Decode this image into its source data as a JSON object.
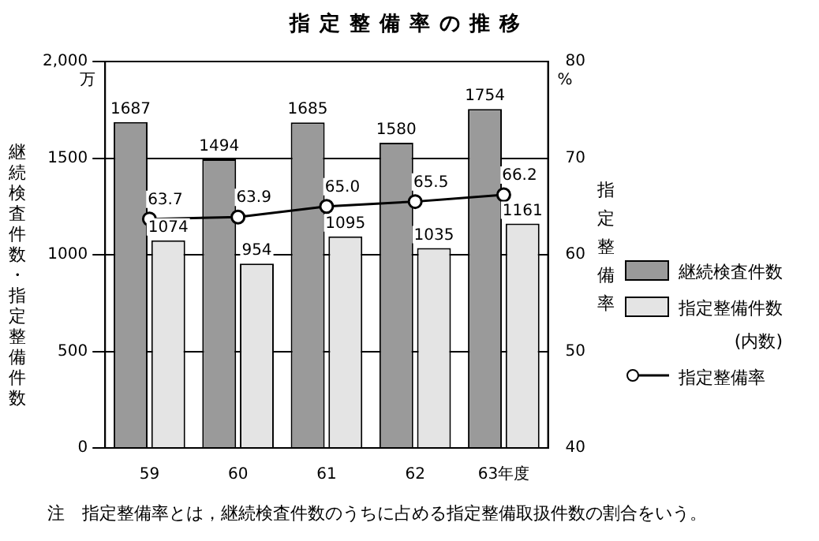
{
  "chart_data": {
    "type": "bar",
    "title": "指定整備率の推移",
    "ylabel": "継続検査件数・指定整備件数",
    "y2label": "指定整備率",
    "annotations": [
      "万",
      "%",
      "注　指定整備率とは，継続検査件数のうちに占める指定整備取扱件数の割合をいう。"
    ],
    "categories": [
      "59",
      "60",
      "61",
      "62",
      "63年度"
    ],
    "series": [
      {
        "name": "継続検査件数",
        "color": "#9a9a9a",
        "values": [
          1687,
          1494,
          1685,
          1580,
          1754
        ],
        "value_labels": [
          "1687",
          "1494",
          "1685",
          "1580",
          "1754"
        ]
      },
      {
        "name": "指定整備件数\n(内数)",
        "color": "#e4e4e4",
        "values": [
          1074,
          954,
          1095,
          1035,
          1161
        ],
        "value_labels": [
          "1074",
          "954",
          "1095",
          "1035",
          "1161"
        ]
      },
      {
        "name": "指定整備率",
        "type": "line",
        "axis": "y2",
        "color": "#000000",
        "values": [
          63.7,
          63.9,
          65.0,
          65.5,
          66.2
        ],
        "value_labels": [
          "63.7",
          "63.9",
          "65.0",
          "65.5",
          "66.2"
        ]
      }
    ],
    "ylim": [
      0,
      2000
    ],
    "yticks": [
      0,
      500,
      1000,
      1500,
      {
        "value": 2000,
        "label": "2,000"
      }
    ],
    "y2lim": [
      40,
      80
    ],
    "y2ticks": [
      40,
      50,
      60,
      70,
      80
    ],
    "grid": "y",
    "legend": "right",
    "marker": "circle",
    "line_style": "solid"
  }
}
